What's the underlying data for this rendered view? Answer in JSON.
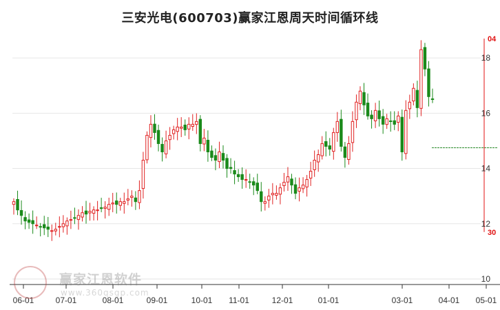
{
  "title": "三安光电(600703)赢家江恩周天时间循环线",
  "watermark": {
    "name": "赢家江恩软件",
    "url": "www.360qsgp.com"
  },
  "chart_data": {
    "type": "candlestick",
    "title": "三安光电(600703)赢家江恩周天时间循环线",
    "x_ticks": [
      "06-01",
      "07-01",
      "08-01",
      "09-01",
      "10-01",
      "11-01",
      "12-01",
      "01-01",
      "03-01",
      "04-01",
      "05-01"
    ],
    "y_ticks": [
      10,
      12,
      14,
      16,
      18
    ],
    "ylim": [
      9.8,
      19.1
    ],
    "cycle_markers": [
      {
        "label": "04",
        "value": 18.7,
        "color": "#e01010"
      },
      {
        "label": "30",
        "value": 11.7,
        "color": "#e01010"
      }
    ],
    "reference_line": {
      "value": 14.75,
      "color": "#2a8a2a",
      "style": "dashed"
    },
    "close_series": [
      12.8,
      12.5,
      12.3,
      12.1,
      12.05,
      12.0,
      11.95,
      11.9,
      11.85,
      11.8,
      11.75,
      11.8,
      11.9,
      12.0,
      12.1,
      12.15,
      12.2,
      12.3,
      12.4,
      12.35,
      12.45,
      12.5,
      12.5,
      12.55,
      12.6,
      12.7,
      12.75,
      12.7,
      12.8,
      12.8,
      12.9,
      13.0,
      12.8,
      13.2,
      14.3,
      15.2,
      15.6,
      15.3,
      14.9,
      14.6,
      15.0,
      15.2,
      15.4,
      15.5,
      15.5,
      15.4,
      15.6,
      15.6,
      15.7,
      14.9,
      15.1,
      14.6,
      14.4,
      14.3,
      14.6,
      14.3,
      14.0,
      14.0,
      13.8,
      13.7,
      13.6,
      13.6,
      13.5,
      13.4,
      13.2,
      12.8,
      12.8,
      13.0,
      13.1,
      13.1,
      13.3,
      13.5,
      13.7,
      13.4,
      13.1,
      13.3,
      13.4,
      13.6,
      13.9,
      14.3,
      14.5,
      14.9,
      14.8,
      14.7,
      15.3,
      15.7,
      14.8,
      14.4,
      14.9,
      15.7,
      16.4,
      16.8,
      16.3,
      15.9,
      15.8,
      16.1,
      15.8,
      15.6,
      15.8,
      15.7,
      15.6,
      15.9,
      14.6,
      16.1,
      16.4,
      16.9,
      16.2,
      18.3,
      17.6,
      16.6,
      16.5
    ]
  }
}
